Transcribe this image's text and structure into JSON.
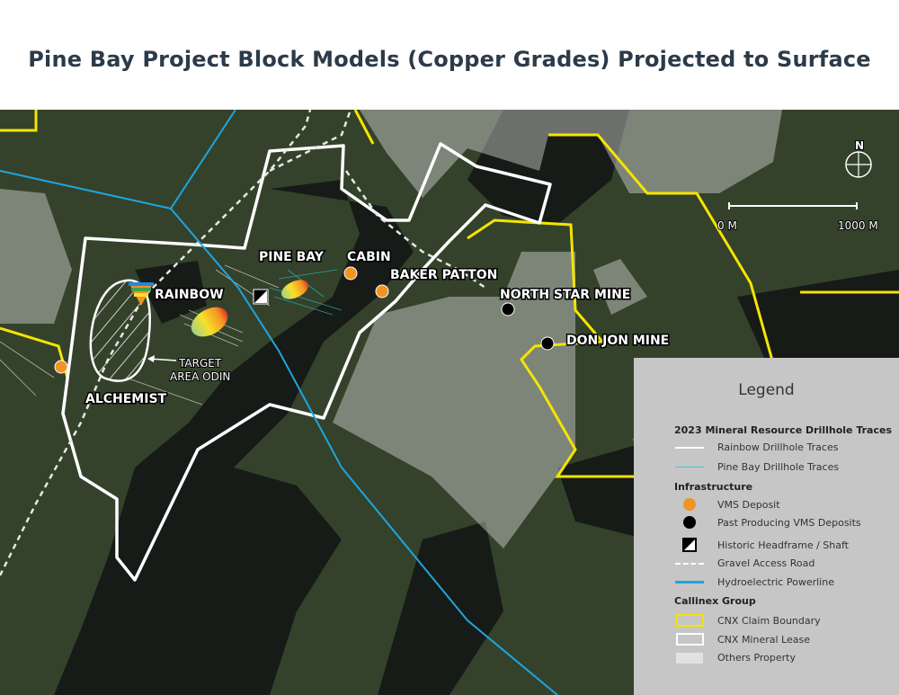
{
  "title": "Pine Bay Project Block Models (Copper Grades) Projected to Surface",
  "map": {
    "labels": {
      "pine_bay": "PINE BAY",
      "cabin": "CABIN",
      "baker_patton": "BAKER PATTON",
      "rainbow": "RAINBOW",
      "north_star": "NORTH STAR MINE",
      "don_jon": "DON JON MINE",
      "alchemist": "ALCHEMIST",
      "target_line1": "TARGET",
      "target_line2": "AREA ODIN"
    },
    "north_label": "N",
    "scale": {
      "start": "0 M",
      "end": "1000 M"
    },
    "colors": {
      "claim": "#f5e400",
      "lease": "#ffffff",
      "powerline": "#1ea5e0",
      "vms": "#f39322",
      "past": "#000000",
      "others": "#d8d8d8"
    }
  },
  "legend": {
    "title": "Legend",
    "sections": [
      {
        "header": "2023 Mineral Resource Drillhole Traces",
        "items": [
          {
            "icon": "white-line",
            "label": "Rainbow Drillhole Traces"
          },
          {
            "icon": "cyan-line",
            "label": "Pine Bay Drillhole Traces"
          }
        ]
      },
      {
        "header": "Infrastructure",
        "items": [
          {
            "icon": "orange-dot",
            "label": "VMS Deposit"
          },
          {
            "icon": "black-dot",
            "label": "Past Producing VMS Deposits"
          },
          {
            "icon": "headframe",
            "label": "Historic Headframe / Shaft"
          },
          {
            "icon": "dashed-line",
            "label": "Gravel Access Road"
          },
          {
            "icon": "blue-line",
            "label": "Hydroelectric Powerline"
          }
        ]
      },
      {
        "header": "Callinex Group",
        "items": [
          {
            "icon": "yellow-box",
            "label": "CNX Claim Boundary"
          },
          {
            "icon": "white-box",
            "label": "CNX Mineral Lease"
          },
          {
            "icon": "grey-box",
            "label": "Others Property"
          }
        ]
      }
    ]
  }
}
